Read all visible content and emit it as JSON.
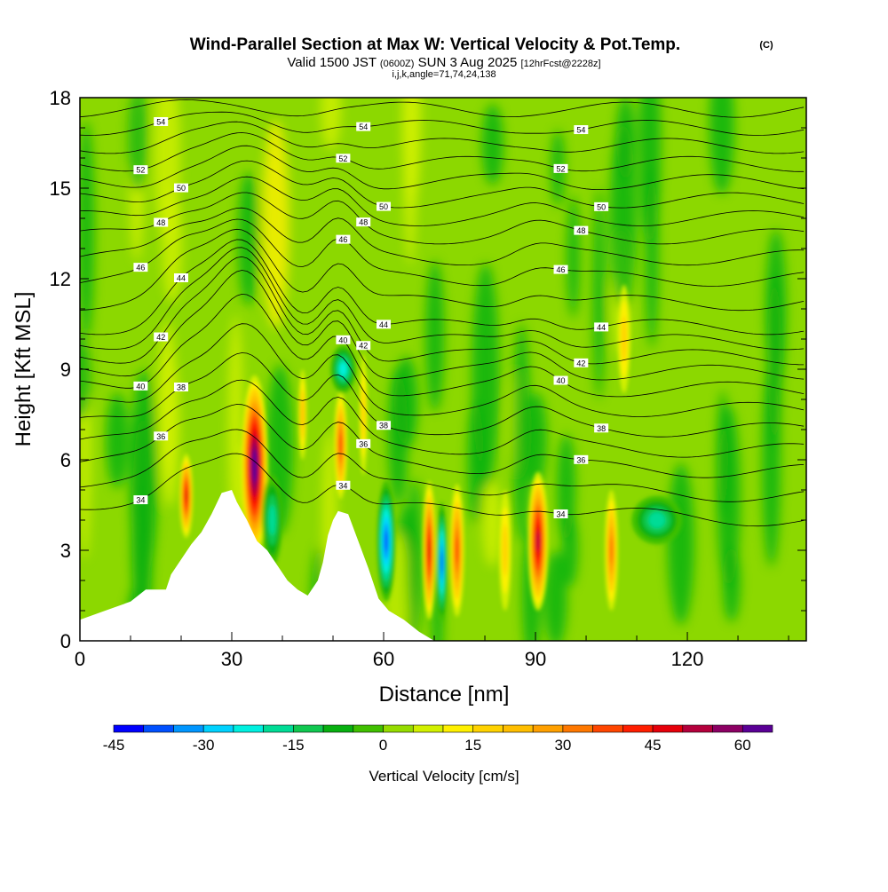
{
  "chart_data": {
    "type": "heatmap",
    "title": "Wind-Parallel Section at Max W: Vertical Velocity & Pot.Temp.",
    "title_mark": "(C)",
    "subtitle_main": "Valid 1500 JST",
    "subtitle_z": "(0600Z)",
    "subtitle_date": "SUN 3 Aug 2025",
    "subtitle_fcst": "[12hrFcst@2228z]",
    "subtitle2": "i,j,k,angle=71,74,24,138",
    "xlabel": "Distance [nm]",
    "ylabel": "Height [Kft MSL]",
    "xlim": [
      0,
      143.5
    ],
    "ylim": [
      0,
      18
    ],
    "xticks": [
      "0",
      "30",
      "60",
      "90",
      "120"
    ],
    "yticks": [
      "0",
      "3",
      "6",
      "9",
      "12",
      "15",
      "18"
    ],
    "colorbar": {
      "label": "Vertical Velocity [cm/s]",
      "min": -45,
      "max": 65,
      "step": 5,
      "tick_labels": [
        "-45",
        "-30",
        "-15",
        "0",
        "15",
        "30",
        "45",
        "60"
      ],
      "colors": [
        "#0000ff",
        "#0050ff",
        "#0096ff",
        "#00d2ff",
        "#00f0e0",
        "#00dc96",
        "#10c850",
        "#08b010",
        "#40c000",
        "#96dc00",
        "#d2f000",
        "#fff000",
        "#ffd200",
        "#ffbe00",
        "#ffa000",
        "#ff7800",
        "#ff4600",
        "#ff1e00",
        "#e6000a",
        "#b4003c",
        "#8c0064",
        "#5a0096"
      ]
    },
    "terrain": [
      [
        0,
        0.7
      ],
      [
        5,
        1.0
      ],
      [
        10,
        1.3
      ],
      [
        13,
        1.7
      ],
      [
        17,
        1.7
      ],
      [
        18,
        2.2
      ],
      [
        20,
        2.7
      ],
      [
        22,
        3.2
      ],
      [
        24,
        3.6
      ],
      [
        26,
        4.2
      ],
      [
        28,
        4.9
      ],
      [
        30,
        5.0
      ],
      [
        31,
        4.6
      ],
      [
        33,
        4.0
      ],
      [
        35,
        3.3
      ],
      [
        37,
        3.0
      ],
      [
        39,
        2.5
      ],
      [
        41,
        2.0
      ],
      [
        43,
        1.7
      ],
      [
        45,
        1.5
      ],
      [
        47,
        2.0
      ],
      [
        48,
        2.6
      ],
      [
        49,
        3.5
      ],
      [
        50,
        4.0
      ],
      [
        51,
        4.3
      ],
      [
        53,
        4.2
      ],
      [
        55,
        3.3
      ],
      [
        57,
        2.4
      ],
      [
        59,
        1.4
      ],
      [
        61,
        1.0
      ],
      [
        64,
        0.7
      ],
      [
        67,
        0.3
      ],
      [
        70,
        0
      ],
      [
        143.5,
        0
      ]
    ],
    "theta_levels": [
      "34",
      "36",
      "38",
      "40",
      "42",
      "44",
      "46",
      "48",
      "50",
      "52",
      "54"
    ],
    "theta_base_heights_kft": [
      4.6,
      6.0,
      7.2,
      8.4,
      9.4,
      10.4,
      12.0,
      13.4,
      14.6,
      15.8,
      17.0
    ],
    "w_cells": [
      {
        "x": 34.5,
        "z": 5.8,
        "w": 65,
        "dx": 2.6,
        "dz": 3.0
      },
      {
        "x": 21,
        "z": 4.8,
        "w": 45,
        "dx": 1.3,
        "dz": 1.4
      },
      {
        "x": 51.5,
        "z": 6.5,
        "w": 35,
        "dx": 1.3,
        "dz": 1.8
      },
      {
        "x": 60.5,
        "z": 3.3,
        "w": -40,
        "dx": 1.8,
        "dz": 2.0
      },
      {
        "x": 69,
        "z": 3.0,
        "w": 45,
        "dx": 1.3,
        "dz": 2.3
      },
      {
        "x": 71.5,
        "z": 2.6,
        "w": -40,
        "dx": 1.0,
        "dz": 2.0
      },
      {
        "x": 74.5,
        "z": 3.0,
        "w": 35,
        "dx": 1.4,
        "dz": 2.2
      },
      {
        "x": 84,
        "z": 3.0,
        "w": 15,
        "dx": 1.2,
        "dz": 2.0
      },
      {
        "x": 90.5,
        "z": 3.3,
        "w": 50,
        "dx": 2.0,
        "dz": 2.3
      },
      {
        "x": 105,
        "z": 3.0,
        "w": 30,
        "dx": 1.3,
        "dz": 2.0
      },
      {
        "x": 52,
        "z": 9.0,
        "w": -25,
        "dx": 2.5,
        "dz": 0.8
      },
      {
        "x": 38,
        "z": 4.0,
        "w": -20,
        "dx": 2.0,
        "dz": 1.5
      },
      {
        "x": 107.5,
        "z": 10.0,
        "w": 15,
        "dx": 1.2,
        "dz": 1.8
      },
      {
        "x": 114,
        "z": 4.0,
        "w": -20,
        "dx": 5.0,
        "dz": 0.8
      },
      {
        "x": 44,
        "z": 7.5,
        "w": 20,
        "dx": 0.8,
        "dz": 1.5
      },
      {
        "x": 56,
        "z": 7.5,
        "w": 15,
        "dx": 0.8,
        "dz": 2.0
      }
    ]
  }
}
